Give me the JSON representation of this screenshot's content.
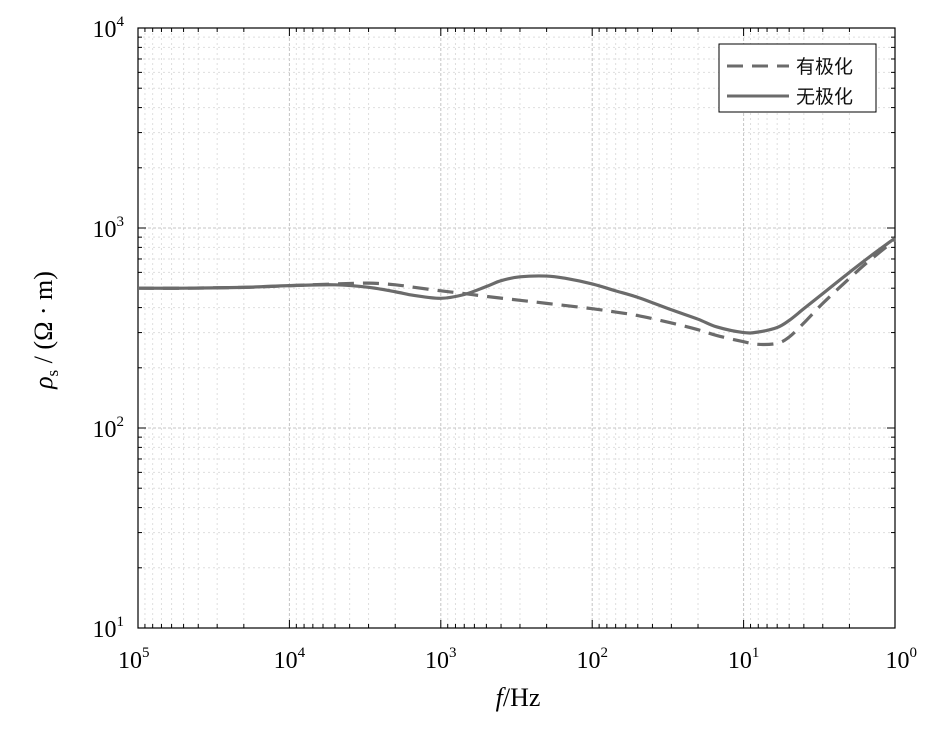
{
  "chart_data": {
    "type": "line",
    "xlabel": {
      "main": "f",
      "unit": "/Hz"
    },
    "ylabel": {
      "rho": "ρ",
      "sub": "s",
      "unit": " / (Ω · m)"
    },
    "x_scale": "log",
    "y_scale": "log",
    "x_reversed": true,
    "xlim": [
      100000,
      1
    ],
    "ylim": [
      10,
      10000
    ],
    "grid": true,
    "legend_position": "top-right",
    "x_ticks": [
      {
        "value": 100000,
        "base": "10",
        "exp": "5"
      },
      {
        "value": 10000,
        "base": "10",
        "exp": "4"
      },
      {
        "value": 1000,
        "base": "10",
        "exp": "3"
      },
      {
        "value": 100,
        "base": "10",
        "exp": "2"
      },
      {
        "value": 10,
        "base": "10",
        "exp": "1"
      },
      {
        "value": 1,
        "base": "10",
        "exp": "0"
      }
    ],
    "y_ticks": [
      {
        "value": 10,
        "base": "10",
        "exp": "1"
      },
      {
        "value": 100,
        "base": "10",
        "exp": "2"
      },
      {
        "value": 1000,
        "base": "10",
        "exp": "3"
      },
      {
        "value": 10000,
        "base": "10",
        "exp": "4"
      }
    ],
    "series": [
      {
        "name": "有极化",
        "style": "dashed",
        "color": "#6b6b6b",
        "x": [
          100000,
          50000,
          20000,
          10000,
          5000,
          3000,
          2000,
          1500,
          1000,
          700,
          500,
          300,
          200,
          100,
          70,
          50,
          30,
          20,
          15,
          10,
          8,
          6,
          5,
          4,
          3,
          2,
          1.5,
          1
        ],
        "y": [
          500,
          500,
          505,
          515,
          525,
          530,
          520,
          505,
          485,
          470,
          455,
          435,
          420,
          395,
          380,
          365,
          335,
          310,
          290,
          270,
          262,
          265,
          285,
          335,
          420,
          560,
          680,
          870
        ]
      },
      {
        "name": "无极化",
        "style": "solid",
        "color": "#6b6b6b",
        "x": [
          100000,
          50000,
          20000,
          10000,
          5000,
          3000,
          2000,
          1500,
          1000,
          700,
          500,
          400,
          300,
          200,
          150,
          100,
          70,
          50,
          30,
          20,
          15,
          10,
          8,
          6,
          5,
          4,
          3,
          2,
          1.5,
          1
        ],
        "y": [
          500,
          500,
          505,
          515,
          520,
          505,
          480,
          460,
          445,
          465,
          510,
          545,
          570,
          575,
          560,
          525,
          485,
          450,
          390,
          350,
          320,
          300,
          302,
          318,
          345,
          395,
          470,
          600,
          710,
          890
        ]
      }
    ]
  }
}
